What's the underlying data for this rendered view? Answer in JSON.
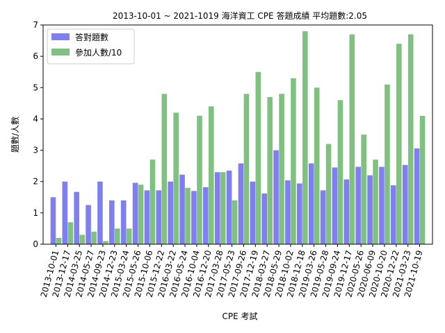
{
  "chart_data": {
    "type": "bar",
    "title": "2013-10-01 ~ 2021-1019 海洋資工 CPE 答題成績 平均題數:2.05",
    "xlabel": "CPE 考試",
    "ylabel": "題數/人數",
    "ylim": [
      0,
      7
    ],
    "yticks": [
      0,
      1,
      2,
      3,
      4,
      5,
      6,
      7
    ],
    "legend_position": "top-left",
    "grid": false,
    "categories": [
      "2013-10-01",
      "2013-12-17",
      "2014-03-25",
      "2014-05-27",
      "2014-09-23",
      "2014-12-23",
      "2015-03-24",
      "2015-05-26",
      "2015-10-06",
      "2015-12-22",
      "2016-03-22",
      "2016-05-24",
      "2016-10-04",
      "2016-12-20",
      "2017-03-28",
      "2017-05-23",
      "2017-09-26",
      "2017-12-19",
      "2018-03-27",
      "2018-05-29",
      "2018-10-02",
      "2018-12-18",
      "2019-03-26",
      "2019-05-28",
      "2019-09-24",
      "2019-12-17",
      "2020-05-26",
      "2020-06-09",
      "2020-10-20",
      "2020-12-22",
      "2021-03-23",
      "2021-10-19"
    ],
    "series": [
      {
        "name": "答對題數",
        "color": "#7f7ff0",
        "values": [
          1.5,
          2.0,
          1.67,
          1.25,
          2.0,
          1.4,
          1.4,
          1.96,
          1.72,
          1.72,
          2.0,
          2.22,
          1.7,
          1.82,
          2.3,
          2.35,
          2.58,
          2.0,
          1.62,
          3.0,
          2.04,
          1.94,
          2.58,
          1.72,
          2.45,
          2.07,
          2.47,
          2.2,
          2.47,
          1.88,
          2.53,
          3.06
        ]
      },
      {
        "name": "參加人數/10",
        "color": "#80c080",
        "values": [
          0.2,
          0.7,
          0.3,
          0.4,
          0.1,
          0.5,
          0.5,
          1.9,
          2.7,
          4.8,
          4.2,
          1.8,
          4.1,
          4.4,
          2.3,
          1.4,
          4.8,
          5.5,
          4.7,
          4.8,
          5.3,
          6.8,
          5.0,
          3.2,
          4.6,
          6.7,
          3.5,
          2.7,
          5.1,
          6.4,
          6.7,
          4.1
        ]
      }
    ]
  }
}
